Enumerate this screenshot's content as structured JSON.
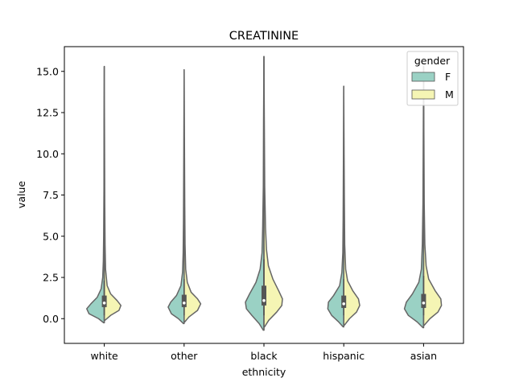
{
  "chart_data": {
    "type": "violin",
    "title": "CREATININE",
    "xlabel": "ethnicity",
    "ylabel": "value",
    "ylim": [
      -1.5,
      16.5
    ],
    "yticks": [
      0.0,
      2.5,
      5.0,
      7.5,
      10.0,
      12.5,
      15.0
    ],
    "ytick_labels": [
      "0.0",
      "2.5",
      "5.0",
      "7.5",
      "10.0",
      "12.5",
      "15.0"
    ],
    "categories": [
      "white",
      "other",
      "black",
      "hispanic",
      "asian"
    ],
    "split": true,
    "legend": {
      "title": "gender",
      "placement": "top-right",
      "entries": [
        {
          "name": "F",
          "color": "#9ad1c4"
        },
        {
          "name": "M",
          "color": "#f5f5b4"
        }
      ]
    },
    "series": [
      {
        "name": "F",
        "color": "#9ad1c4",
        "violins": [
          {
            "category": "white",
            "min": -0.25,
            "max": 15.3,
            "peak": 0.6,
            "shape": [
              [
                -0.25,
                0.02
              ],
              [
                0.0,
                0.18
              ],
              [
                0.3,
                0.48
              ],
              [
                0.6,
                0.55
              ],
              [
                0.9,
                0.42
              ],
              [
                1.3,
                0.22
              ],
              [
                1.8,
                0.1
              ],
              [
                2.5,
                0.05
              ],
              [
                3.5,
                0.03
              ],
              [
                5.0,
                0.02
              ],
              [
                8.0,
                0.01
              ],
              [
                12.0,
                0.008
              ],
              [
                15.3,
                0.0
              ]
            ]
          },
          {
            "category": "other",
            "min": -0.3,
            "max": 15.1,
            "peak": 0.7,
            "shape": [
              [
                -0.3,
                0.02
              ],
              [
                0.0,
                0.18
              ],
              [
                0.3,
                0.4
              ],
              [
                0.7,
                0.5
              ],
              [
                1.0,
                0.42
              ],
              [
                1.4,
                0.24
              ],
              [
                2.0,
                0.1
              ],
              [
                2.8,
                0.05
              ],
              [
                4.0,
                0.03
              ],
              [
                6.0,
                0.02
              ],
              [
                10.0,
                0.01
              ],
              [
                15.1,
                0.0
              ]
            ]
          },
          {
            "category": "black",
            "min": -0.7,
            "max": 15.9,
            "peak": 0.9,
            "shape": [
              [
                -0.7,
                0.02
              ],
              [
                -0.3,
                0.15
              ],
              [
                0.2,
                0.38
              ],
              [
                0.6,
                0.55
              ],
              [
                1.0,
                0.58
              ],
              [
                1.5,
                0.45
              ],
              [
                2.2,
                0.25
              ],
              [
                3.0,
                0.12
              ],
              [
                4.0,
                0.06
              ],
              [
                5.5,
                0.04
              ],
              [
                8.0,
                0.02
              ],
              [
                12.0,
                0.012
              ],
              [
                15.9,
                0.0
              ]
            ]
          },
          {
            "category": "hispanic",
            "min": -0.5,
            "max": 14.1,
            "peak": 0.8,
            "shape": [
              [
                -0.5,
                0.02
              ],
              [
                -0.2,
                0.16
              ],
              [
                0.2,
                0.38
              ],
              [
                0.6,
                0.5
              ],
              [
                1.0,
                0.48
              ],
              [
                1.4,
                0.32
              ],
              [
                2.0,
                0.13
              ],
              [
                2.8,
                0.06
              ],
              [
                4.0,
                0.03
              ],
              [
                6.0,
                0.02
              ],
              [
                10.0,
                0.01
              ],
              [
                14.1,
                0.0
              ]
            ]
          },
          {
            "category": "asian",
            "min": -0.55,
            "max": 15.3,
            "peak": 0.7,
            "shape": [
              [
                -0.55,
                0.02
              ],
              [
                -0.2,
                0.2
              ],
              [
                0.2,
                0.48
              ],
              [
                0.6,
                0.6
              ],
              [
                1.0,
                0.54
              ],
              [
                1.5,
                0.35
              ],
              [
                2.2,
                0.15
              ],
              [
                3.0,
                0.07
              ],
              [
                4.5,
                0.04
              ],
              [
                7.0,
                0.02
              ],
              [
                11.0,
                0.01
              ],
              [
                15.3,
                0.0
              ]
            ]
          }
        ]
      },
      {
        "name": "M",
        "color": "#f5f5b4",
        "violins": [
          {
            "category": "white",
            "min": -0.1,
            "max": 15.3,
            "peak": 0.8,
            "shape": [
              [
                -0.1,
                0.02
              ],
              [
                0.2,
                0.2
              ],
              [
                0.5,
                0.46
              ],
              [
                0.8,
                0.52
              ],
              [
                1.1,
                0.4
              ],
              [
                1.5,
                0.2
              ],
              [
                2.0,
                0.09
              ],
              [
                3.0,
                0.04
              ],
              [
                4.5,
                0.025
              ],
              [
                7.0,
                0.015
              ],
              [
                11.0,
                0.008
              ],
              [
                15.3,
                0.0
              ]
            ]
          },
          {
            "category": "other",
            "min": -0.2,
            "max": 15.1,
            "peak": 0.9,
            "shape": [
              [
                -0.2,
                0.02
              ],
              [
                0.1,
                0.15
              ],
              [
                0.5,
                0.42
              ],
              [
                0.9,
                0.52
              ],
              [
                1.2,
                0.42
              ],
              [
                1.6,
                0.22
              ],
              [
                2.2,
                0.1
              ],
              [
                3.0,
                0.05
              ],
              [
                4.5,
                0.03
              ],
              [
                7.0,
                0.02
              ],
              [
                11.0,
                0.01
              ],
              [
                15.1,
                0.0
              ]
            ]
          },
          {
            "category": "black",
            "min": -0.5,
            "max": 15.9,
            "peak": 1.1,
            "shape": [
              [
                -0.5,
                0.02
              ],
              [
                -0.1,
                0.15
              ],
              [
                0.4,
                0.4
              ],
              [
                0.8,
                0.56
              ],
              [
                1.2,
                0.58
              ],
              [
                1.7,
                0.46
              ],
              [
                2.4,
                0.28
              ],
              [
                3.2,
                0.14
              ],
              [
                4.2,
                0.08
              ],
              [
                5.5,
                0.05
              ],
              [
                8.0,
                0.025
              ],
              [
                12.0,
                0.012
              ],
              [
                15.9,
                0.0
              ]
            ]
          },
          {
            "category": "hispanic",
            "min": -0.4,
            "max": 14.1,
            "peak": 0.9,
            "shape": [
              [
                -0.4,
                0.02
              ],
              [
                0.0,
                0.18
              ],
              [
                0.4,
                0.4
              ],
              [
                0.8,
                0.5
              ],
              [
                1.2,
                0.46
              ],
              [
                1.7,
                0.28
              ],
              [
                2.3,
                0.12
              ],
              [
                3.0,
                0.06
              ],
              [
                4.5,
                0.03
              ],
              [
                7.0,
                0.02
              ],
              [
                10.0,
                0.01
              ],
              [
                14.1,
                0.0
              ]
            ]
          },
          {
            "category": "asian",
            "min": -0.4,
            "max": 15.3,
            "peak": 1.0,
            "shape": [
              [
                -0.4,
                0.02
              ],
              [
                0.0,
                0.2
              ],
              [
                0.4,
                0.45
              ],
              [
                0.8,
                0.56
              ],
              [
                1.2,
                0.54
              ],
              [
                1.7,
                0.36
              ],
              [
                2.4,
                0.16
              ],
              [
                3.2,
                0.08
              ],
              [
                4.5,
                0.04
              ],
              [
                7.0,
                0.02
              ],
              [
                11.0,
                0.01
              ],
              [
                15.3,
                0.0
              ]
            ]
          }
        ]
      }
    ],
    "boxes": [
      {
        "category": "white",
        "q1": 0.7,
        "median": 0.95,
        "q3": 1.4,
        "whisker_low": 0.2,
        "whisker_high": 2.3
      },
      {
        "category": "other",
        "q1": 0.7,
        "median": 0.95,
        "q3": 1.45,
        "whisker_low": 0.2,
        "whisker_high": 2.4
      },
      {
        "category": "black",
        "q1": 0.8,
        "median": 1.1,
        "q3": 2.0,
        "whisker_low": 0.2,
        "whisker_high": 3.6
      },
      {
        "category": "hispanic",
        "q1": 0.65,
        "median": 0.9,
        "q3": 1.4,
        "whisker_low": 0.2,
        "whisker_high": 2.4
      },
      {
        "category": "asian",
        "q1": 0.65,
        "median": 0.95,
        "q3": 1.5,
        "whisker_low": 0.2,
        "whisker_high": 2.6
      }
    ]
  }
}
